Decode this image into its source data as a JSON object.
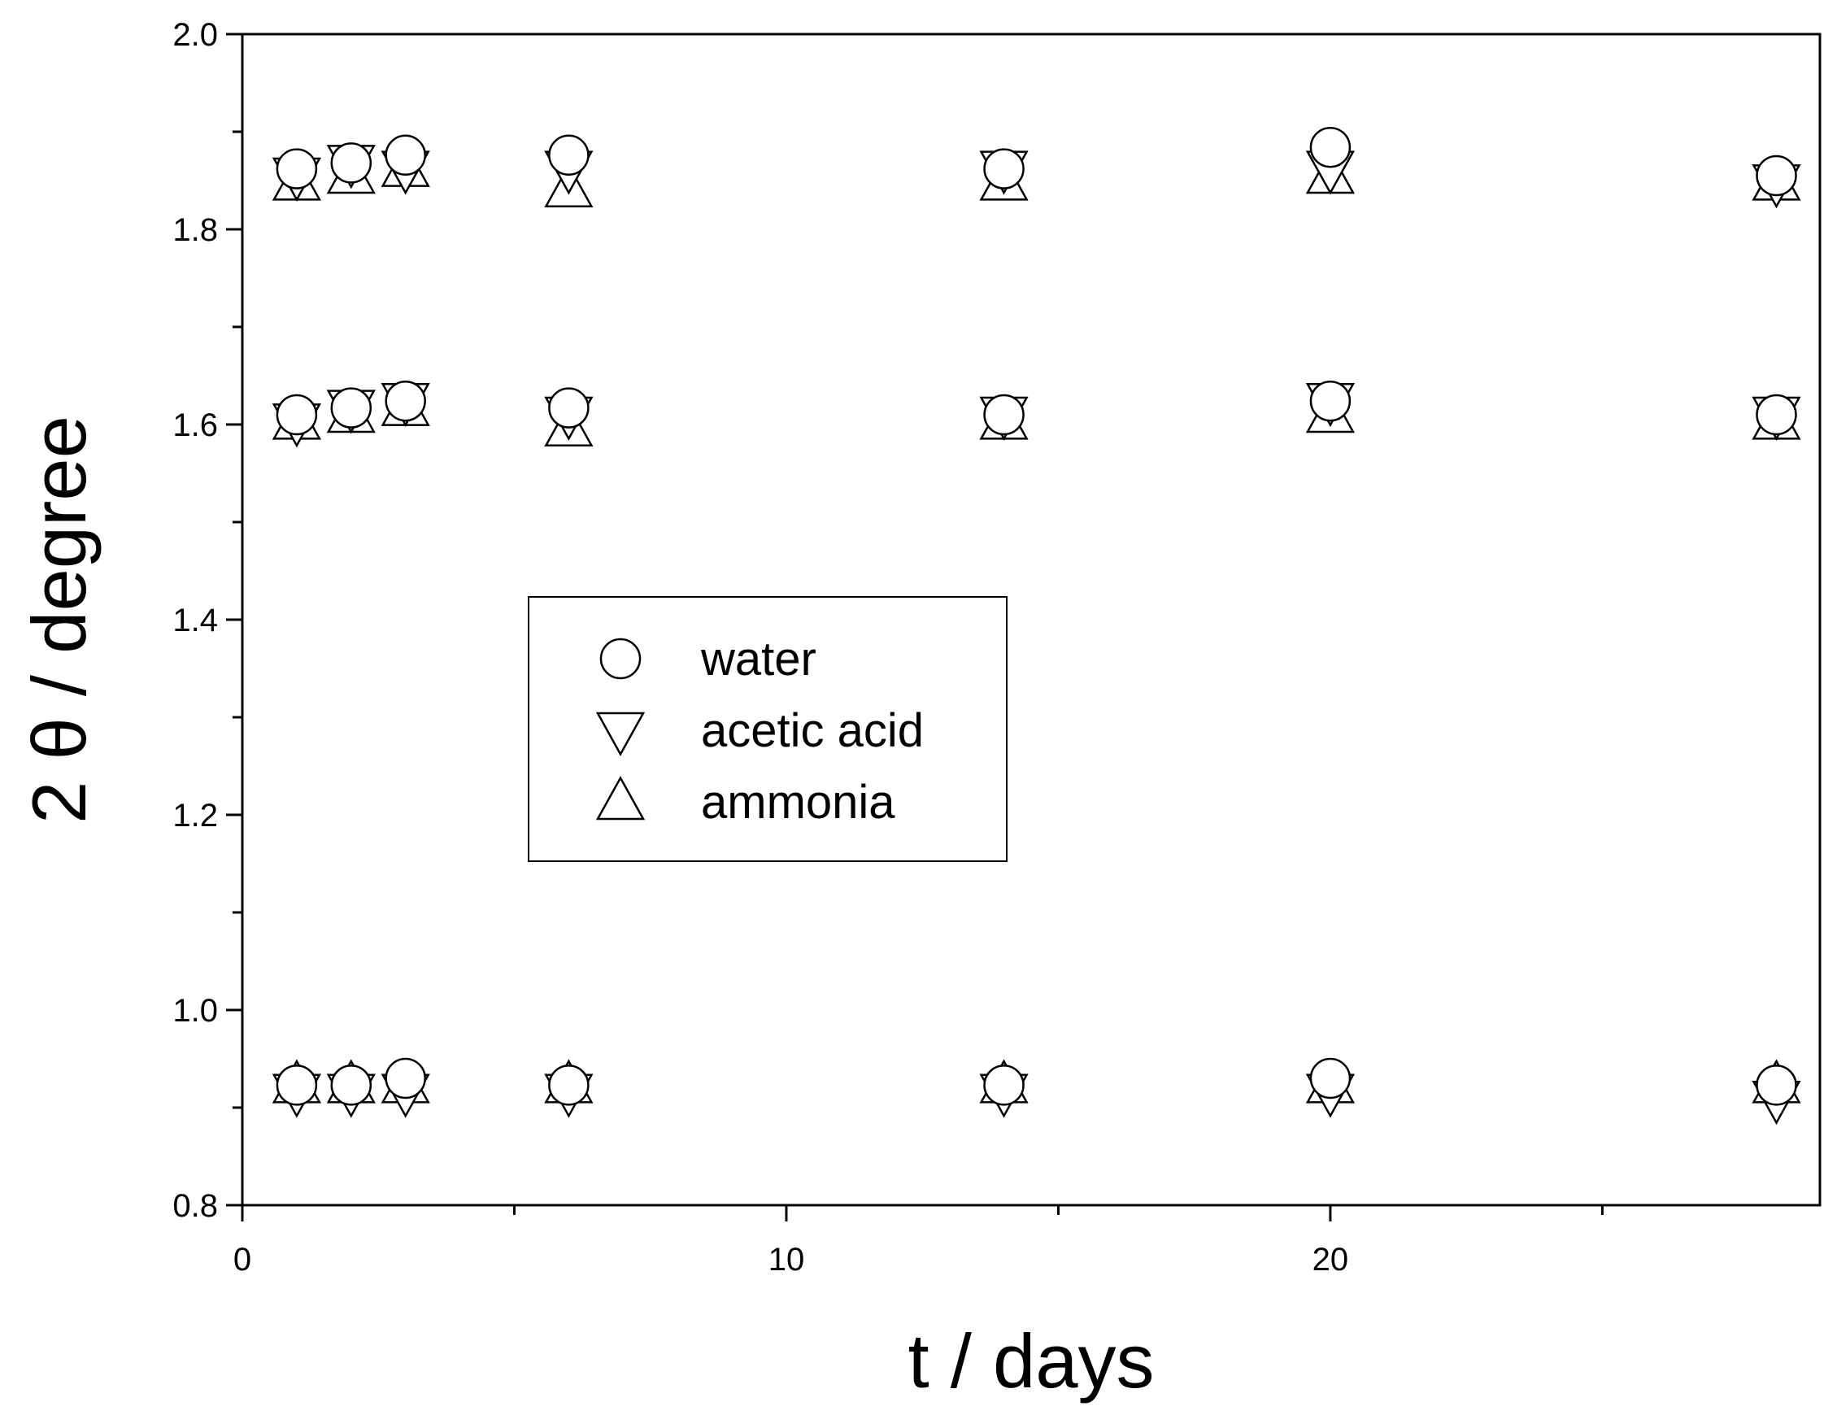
{
  "chart_data": {
    "type": "scatter",
    "xlabel": "t / days",
    "ylabel": "2 θ / degree",
    "xlim": [
      0,
      29
    ],
    "ylim": [
      0.8,
      2.0
    ],
    "x_ticks": [
      0,
      10,
      20
    ],
    "y_ticks": [
      0.8,
      1.0,
      1.2,
      1.4,
      1.6,
      1.8,
      2.0
    ],
    "y_tick_labels": [
      "0.8",
      "1.0",
      "1.2",
      "1.4",
      "1.6",
      "1.8",
      "2.0"
    ],
    "x_minor_ticks": [
      5,
      15,
      25
    ],
    "y_minor_ticks": [
      0.9,
      1.1,
      1.3,
      1.5,
      1.7,
      1.9
    ],
    "grid": false,
    "legend_position": "center-left",
    "series": [
      {
        "name": "water",
        "marker": "circle",
        "points": [
          {
            "x": 1,
            "y": 1.862
          },
          {
            "x": 2,
            "y": 1.868
          },
          {
            "x": 3,
            "y": 1.876
          },
          {
            "x": 6,
            "y": 1.876
          },
          {
            "x": 14,
            "y": 1.862
          },
          {
            "x": 20,
            "y": 1.884
          },
          {
            "x": 28.2,
            "y": 1.855
          },
          {
            "x": 1,
            "y": 1.61
          },
          {
            "x": 2,
            "y": 1.617
          },
          {
            "x": 3,
            "y": 1.624
          },
          {
            "x": 6,
            "y": 1.617
          },
          {
            "x": 14,
            "y": 1.61
          },
          {
            "x": 20,
            "y": 1.624
          },
          {
            "x": 28.2,
            "y": 1.61
          },
          {
            "x": 1,
            "y": 0.923
          },
          {
            "x": 2,
            "y": 0.923
          },
          {
            "x": 3,
            "y": 0.93
          },
          {
            "x": 6,
            "y": 0.923
          },
          {
            "x": 14,
            "y": 0.923
          },
          {
            "x": 20,
            "y": 0.93
          },
          {
            "x": 28.2,
            "y": 0.923
          }
        ]
      },
      {
        "name": "acetic acid",
        "marker": "triangle-down",
        "points": [
          {
            "x": 1,
            "y": 1.855
          },
          {
            "x": 2,
            "y": 1.868
          },
          {
            "x": 3,
            "y": 1.862
          },
          {
            "x": 6,
            "y": 1.862
          },
          {
            "x": 14,
            "y": 1.862
          },
          {
            "x": 20,
            "y": 1.862
          },
          {
            "x": 28.2,
            "y": 1.848
          },
          {
            "x": 1,
            "y": 1.603
          },
          {
            "x": 2,
            "y": 1.617
          },
          {
            "x": 3,
            "y": 1.624
          },
          {
            "x": 6,
            "y": 1.61
          },
          {
            "x": 14,
            "y": 1.61
          },
          {
            "x": 20,
            "y": 1.624
          },
          {
            "x": 28.2,
            "y": 1.61
          },
          {
            "x": 1,
            "y": 0.916
          },
          {
            "x": 2,
            "y": 0.916
          },
          {
            "x": 3,
            "y": 0.916
          },
          {
            "x": 6,
            "y": 0.916
          },
          {
            "x": 14,
            "y": 0.916
          },
          {
            "x": 20,
            "y": 0.916
          },
          {
            "x": 28.2,
            "y": 0.909
          }
        ]
      },
      {
        "name": "ammonia",
        "marker": "triangle-up",
        "points": [
          {
            "x": 1,
            "y": 1.848
          },
          {
            "x": 2,
            "y": 1.855
          },
          {
            "x": 3,
            "y": 1.862
          },
          {
            "x": 6,
            "y": 1.841
          },
          {
            "x": 14,
            "y": 1.848
          },
          {
            "x": 20,
            "y": 1.855
          },
          {
            "x": 28.2,
            "y": 1.848
          },
          {
            "x": 1,
            "y": 1.603
          },
          {
            "x": 2,
            "y": 1.61
          },
          {
            "x": 3,
            "y": 1.617
          },
          {
            "x": 6,
            "y": 1.596
          },
          {
            "x": 14,
            "y": 1.603
          },
          {
            "x": 20,
            "y": 1.61
          },
          {
            "x": 28.2,
            "y": 1.603
          },
          {
            "x": 1,
            "y": 0.923
          },
          {
            "x": 2,
            "y": 0.923
          },
          {
            "x": 3,
            "y": 0.923
          },
          {
            "x": 6,
            "y": 0.923
          },
          {
            "x": 14,
            "y": 0.923
          },
          {
            "x": 20,
            "y": 0.923
          },
          {
            "x": 28.2,
            "y": 0.923
          }
        ]
      }
    ]
  }
}
